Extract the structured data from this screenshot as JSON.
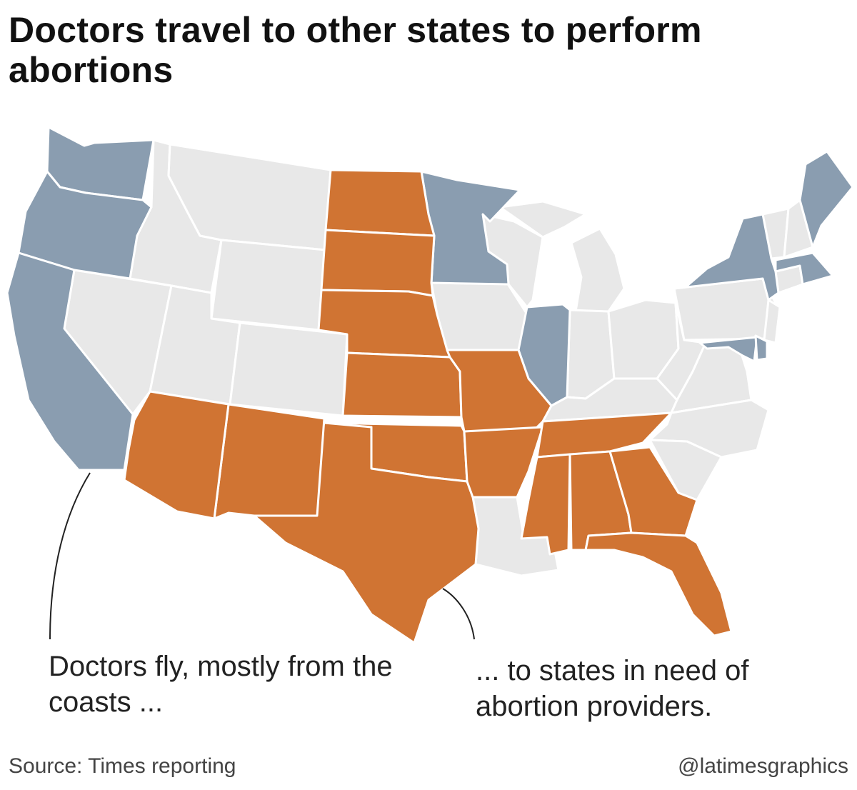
{
  "title": "Doctors travel to other states to perform abortions",
  "callouts": {
    "left": "Doctors fly, mostly from the coasts ...",
    "right": "... to states in need of abortion providers."
  },
  "source": "Source: Times reporting",
  "credit": "@latimesgraphics",
  "colors": {
    "origin_states": "#8a9db0",
    "destination_states": "#d07433",
    "other_states": "#e8e8e8",
    "borders": "#ffffff"
  },
  "origin_states": [
    "Washington",
    "Oregon",
    "California",
    "Minnesota",
    "Illinois",
    "New York",
    "Maine",
    "Massachusetts",
    "Rhode Island",
    "Maryland",
    "Delaware"
  ],
  "destination_states": [
    "North Dakota",
    "South Dakota",
    "Nebraska",
    "Kansas",
    "Missouri",
    "Oklahoma",
    "Texas",
    "Arkansas",
    "New Mexico",
    "Arizona",
    "Tennessee",
    "Mississippi",
    "Alabama",
    "Georgia",
    "Florida"
  ]
}
